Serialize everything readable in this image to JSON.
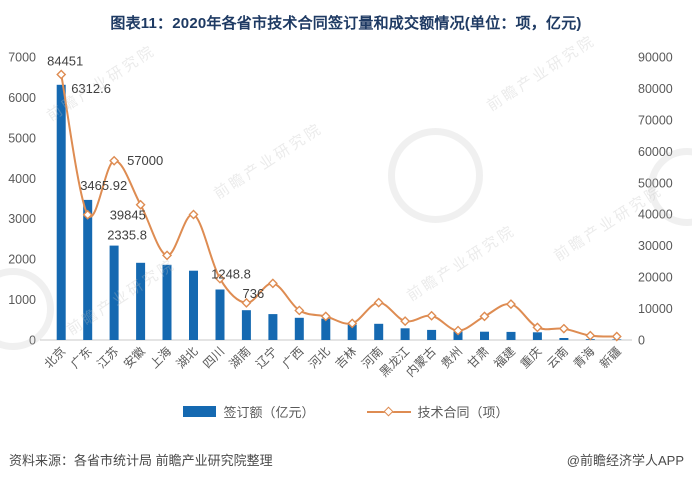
{
  "title": "图表11：2020年各省市技术合同签订量和成交额情况(单位：项，亿元)",
  "chart_data": {
    "type": "bar+line combo",
    "categories": [
      "北京",
      "广东",
      "江苏",
      "安徽",
      "上海",
      "湖北",
      "四川",
      "湖南",
      "辽宁",
      "广西",
      "河北",
      "吉林",
      "河南",
      "黑龙江",
      "内蒙古",
      "贵州",
      "甘肃",
      "福建",
      "重庆",
      "云南",
      "青海",
      "新疆"
    ],
    "series": [
      {
        "name": "签订额（亿元）",
        "type": "bar",
        "axis": "left",
        "color": "#1569B1",
        "values": [
          6312.6,
          3465.92,
          2335.8,
          1910,
          1860,
          1715,
          1248.8,
          736,
          640,
          550,
          530,
          380,
          400,
          290,
          250,
          210,
          205,
          200,
          190,
          50,
          20,
          15
        ]
      },
      {
        "name": "技术合同（项）",
        "type": "line",
        "axis": "right",
        "color": "#DE8C52",
        "values": [
          84451,
          39845,
          57000,
          43000,
          26900,
          39900,
          19500,
          11800,
          18000,
          9400,
          7500,
          5300,
          11900,
          6000,
          7700,
          3000,
          7500,
          11400,
          4000,
          3600,
          1400,
          1100
        ]
      }
    ],
    "left_axis": {
      "min": 0,
      "max": 7000,
      "step": 1000,
      "ticks": [
        "0",
        "1000",
        "2000",
        "3000",
        "4000",
        "5000",
        "6000",
        "7000"
      ]
    },
    "right_axis": {
      "min": 0,
      "max": 90000,
      "step": 10000,
      "ticks": [
        "0",
        "10000",
        "20000",
        "30000",
        "40000",
        "50000",
        "60000",
        "70000",
        "80000",
        "90000"
      ]
    },
    "data_labels": [
      {
        "series": "line",
        "category": "北京",
        "text": "84451"
      },
      {
        "series": "bar",
        "category": "北京",
        "text": "6312.6"
      },
      {
        "series": "bar",
        "category": "广东",
        "text": "3465.92"
      },
      {
        "series": "line",
        "category": "江苏",
        "text": "57000"
      },
      {
        "series": "line",
        "category": "广东",
        "text": "39845"
      },
      {
        "series": "bar",
        "category": "江苏",
        "text": "2335.8"
      },
      {
        "series": "bar",
        "category": "四川",
        "text": "1248.8"
      },
      {
        "series": "bar",
        "category": "湖南",
        "text": "736"
      }
    ],
    "legend_position": "bottom",
    "grid": false,
    "colors": {
      "bar": "#1569B1",
      "line": "#DE8C52",
      "axis_text": "#595959",
      "data_label": "#404040",
      "baseline": "#C9C9C9",
      "title": "#1E3A63"
    }
  },
  "footer": {
    "source": "资料来源：各省市统计局 前瞻产业研究院整理",
    "credit": "@前瞻经济学人APP"
  },
  "watermark": {
    "text": "前瞻产业研究院"
  }
}
